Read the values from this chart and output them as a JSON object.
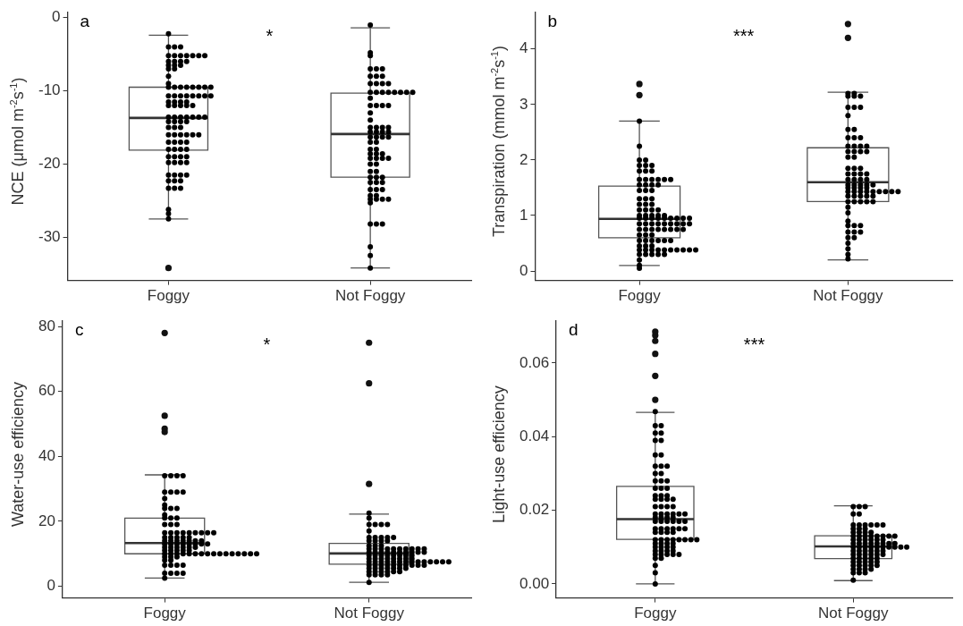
{
  "chart_data": [
    {
      "type": "box",
      "ylabel": "NCE (μmol m$^{-2}$s$^{-1}$)",
      "categories": [
        "Foggy",
        "Not Foggy"
      ],
      "ylim": [
        -35.9,
        0.8
      ],
      "yticks": [
        0,
        -10,
        -20,
        -30
      ],
      "annotations": [
        "a",
        "*"
      ],
      "marker": "circle",
      "boxes": [
        {
          "low": -27.5,
          "q1": -18.1,
          "median": -13.7,
          "q3": -9.5,
          "high": -2.4,
          "outliers": [
            -34.2
          ]
        },
        {
          "low": -34.2,
          "q1": -21.8,
          "median": -15.9,
          "q3": -10.3,
          "high": -1.4
        }
      ],
      "series": [
        {
          "type": "scatter",
          "color": "#000000",
          "x": [
            "Foggy",
            "Foggy",
            "Foggy",
            "Foggy",
            "Foggy",
            "Foggy",
            "Foggy",
            "Foggy",
            "Foggy",
            "Foggy",
            "Foggy",
            "Foggy",
            "Foggy",
            "Foggy",
            "Foggy",
            "Foggy",
            "Foggy",
            "Foggy",
            "Foggy",
            "Foggy",
            "Foggy",
            "Foggy",
            "Foggy",
            "Foggy",
            "Foggy",
            "Foggy",
            "Foggy",
            "Foggy",
            "Foggy",
            "Foggy",
            "Foggy",
            "Foggy",
            "Foggy",
            "Foggy",
            "Foggy",
            "Foggy",
            "Foggy",
            "Foggy",
            "Foggy",
            "Foggy",
            "Foggy",
            "Foggy",
            "Foggy",
            "Foggy",
            "Foggy",
            "Foggy",
            "Foggy",
            "Foggy",
            "Foggy",
            "Foggy",
            "Foggy",
            "Foggy",
            "Foggy",
            "Foggy",
            "Foggy",
            "Foggy",
            "Foggy",
            "Foggy",
            "Foggy",
            "Foggy",
            "Foggy",
            "Foggy",
            "Foggy",
            "Foggy",
            "Foggy",
            "Foggy",
            "Foggy",
            "Foggy",
            "Foggy",
            "Foggy",
            "Foggy",
            "Foggy",
            "Foggy",
            "Foggy",
            "Foggy",
            "Foggy",
            "Foggy",
            "Foggy",
            "Foggy",
            "Foggy",
            "Foggy",
            "Foggy",
            "Foggy",
            "Foggy",
            "Foggy",
            "Foggy",
            "Foggy",
            "Foggy",
            "Foggy",
            "Foggy",
            "Foggy",
            "Foggy",
            "Foggy",
            "Foggy",
            "Foggy",
            "Foggy"
          ],
          "values": [
            -2.2,
            -4,
            -4,
            -4,
            -5.2,
            -5.2,
            -5.2,
            -5.2,
            -5.2,
            -5.2,
            -5.2,
            -6,
            -6,
            -6,
            -6,
            -6.5,
            -6.5,
            -6.5,
            -7,
            -7,
            -8,
            -9,
            -9.5,
            -9.5,
            -9.5,
            -9.5,
            -9.5,
            -9.5,
            -9.5,
            -9.5,
            -10.7,
            -10.7,
            -10.7,
            -10.7,
            -10.7,
            -10.7,
            -10.7,
            -10.7,
            -11.5,
            -11.5,
            -11.5,
            -11.5,
            -12,
            -12,
            -12,
            -12,
            -12,
            -13.6,
            -13.6,
            -13.6,
            -13.6,
            -13.6,
            -13.6,
            -13.6,
            -14.2,
            -14.2,
            -14.2,
            -14.2,
            -15,
            -15,
            -15,
            -16,
            -16,
            -16,
            -16,
            -16,
            -16,
            -17,
            -17,
            -17,
            -17,
            -18,
            -18,
            -18,
            -18,
            -19,
            -19,
            -19,
            -19,
            -19.8,
            -19.8,
            -19.8,
            -19.8,
            -21.5,
            -21.5,
            -21.5,
            -21.5,
            -22.3,
            -22.3,
            -22.3,
            -23.3,
            -23.3,
            -23.3,
            -26.2,
            -26.8,
            -27.5
          ]
        },
        {
          "type": "scatter",
          "color": "#000000",
          "x": [
            "Not Foggy",
            "Not Foggy",
            "Not Foggy",
            "Not Foggy",
            "Not Foggy",
            "Not Foggy",
            "Not Foggy",
            "Not Foggy",
            "Not Foggy",
            "Not Foggy",
            "Not Foggy",
            "Not Foggy",
            "Not Foggy",
            "Not Foggy",
            "Not Foggy",
            "Not Foggy",
            "Not Foggy",
            "Not Foggy",
            "Not Foggy",
            "Not Foggy",
            "Not Foggy",
            "Not Foggy",
            "Not Foggy",
            "Not Foggy",
            "Not Foggy",
            "Not Foggy",
            "Not Foggy",
            "Not Foggy",
            "Not Foggy",
            "Not Foggy",
            "Not Foggy",
            "Not Foggy",
            "Not Foggy",
            "Not Foggy",
            "Not Foggy",
            "Not Foggy",
            "Not Foggy",
            "Not Foggy",
            "Not Foggy",
            "Not Foggy",
            "Not Foggy",
            "Not Foggy",
            "Not Foggy",
            "Not Foggy",
            "Not Foggy",
            "Not Foggy",
            "Not Foggy",
            "Not Foggy",
            "Not Foggy",
            "Not Foggy",
            "Not Foggy",
            "Not Foggy",
            "Not Foggy",
            "Not Foggy",
            "Not Foggy",
            "Not Foggy",
            "Not Foggy",
            "Not Foggy",
            "Not Foggy",
            "Not Foggy",
            "Not Foggy",
            "Not Foggy",
            "Not Foggy",
            "Not Foggy",
            "Not Foggy",
            "Not Foggy",
            "Not Foggy",
            "Not Foggy",
            "Not Foggy",
            "Not Foggy",
            "Not Foggy",
            "Not Foggy",
            "Not Foggy",
            "Not Foggy",
            "Not Foggy",
            "Not Foggy",
            "Not Foggy"
          ],
          "values": [
            -1,
            -4.8,
            -5.2,
            -7,
            -7,
            -7,
            -8,
            -8,
            -8,
            -9,
            -9,
            -9,
            -9,
            -10.2,
            -10.2,
            -10.2,
            -10.2,
            -10.2,
            -10.2,
            -10.2,
            -10.2,
            -11,
            -12,
            -12,
            -12,
            -12,
            -13,
            -14,
            -15,
            -15,
            -15,
            -15,
            -15.6,
            -15.6,
            -15.6,
            -15.6,
            -16.3,
            -16.3,
            -16.3,
            -16.3,
            -17,
            -17,
            -18,
            -18,
            -18.6,
            -18.6,
            -18.6,
            -19.2,
            -19.2,
            -19.2,
            -19.2,
            -20,
            -20,
            -21,
            -21,
            -21.8,
            -21.8,
            -21.8,
            -22.5,
            -22.5,
            -22.5,
            -23.5,
            -23.5,
            -23.5,
            -24.3,
            -24.3,
            -24.8,
            -24.8,
            -24.8,
            -24.8,
            -25.3,
            -28.2,
            -28.2,
            -28.2,
            -31.3,
            -32.5,
            -34.2
          ]
        }
      ]
    },
    {
      "type": "box",
      "ylabel": "Transpiration (mmol m$^{-2}$s$^{-1}$)",
      "categories": [
        "Foggy",
        "Not Foggy"
      ],
      "ylim": [
        -0.17,
        4.67
      ],
      "yticks": [
        0,
        1,
        2,
        3,
        4
      ],
      "annotations": [
        "b",
        "***"
      ],
      "marker": "circle",
      "boxes": [
        {
          "low": 0.1,
          "q1": 0.6,
          "median": 0.94,
          "q3": 1.53,
          "high": 2.7,
          "outliers": [
            3.17,
            3.37
          ]
        },
        {
          "low": 0.2,
          "q1": 1.25,
          "median": 1.6,
          "q3": 2.22,
          "high": 3.22,
          "outliers": [
            4.2,
            4.45
          ]
        }
      ],
      "series": [
        {
          "type": "scatter",
          "color": "#000000",
          "x": [
            "Foggy",
            "Foggy",
            "Foggy",
            "Foggy",
            "Foggy",
            "Foggy",
            "Foggy",
            "Foggy",
            "Foggy",
            "Foggy",
            "Foggy",
            "Foggy",
            "Foggy",
            "Foggy",
            "Foggy",
            "Foggy",
            "Foggy",
            "Foggy",
            "Foggy",
            "Foggy",
            "Foggy",
            "Foggy",
            "Foggy",
            "Foggy",
            "Foggy",
            "Foggy",
            "Foggy",
            "Foggy",
            "Foggy",
            "Foggy",
            "Foggy",
            "Foggy",
            "Foggy",
            "Foggy",
            "Foggy",
            "Foggy",
            "Foggy",
            "Foggy",
            "Foggy",
            "Foggy",
            "Foggy",
            "Foggy",
            "Foggy",
            "Foggy",
            "Foggy",
            "Foggy",
            "Foggy",
            "Foggy",
            "Foggy",
            "Foggy",
            "Foggy",
            "Foggy",
            "Foggy",
            "Foggy",
            "Foggy",
            "Foggy",
            "Foggy",
            "Foggy",
            "Foggy",
            "Foggy",
            "Foggy",
            "Foggy",
            "Foggy",
            "Foggy",
            "Foggy",
            "Foggy",
            "Foggy",
            "Foggy",
            "Foggy",
            "Foggy",
            "Foggy",
            "Foggy",
            "Foggy",
            "Foggy",
            "Foggy",
            "Foggy",
            "Foggy",
            "Foggy",
            "Foggy",
            "Foggy",
            "Foggy",
            "Foggy",
            "Foggy",
            "Foggy",
            "Foggy",
            "Foggy",
            "Foggy",
            "Foggy",
            "Foggy",
            "Foggy",
            "Foggy",
            "Foggy",
            "Foggy",
            "Foggy"
          ],
          "values": [
            2.7,
            2.25,
            2,
            2,
            1.9,
            1.9,
            1.9,
            1.8,
            1.8,
            1.8,
            1.65,
            1.65,
            1.65,
            1.65,
            1.65,
            1.65,
            1.55,
            1.55,
            1.55,
            1.55,
            1.45,
            1.45,
            1.45,
            1.3,
            1.3,
            1.3,
            1.2,
            1.2,
            1.2,
            1.1,
            1.1,
            1.1,
            1.1,
            1,
            1,
            1,
            1,
            1,
            0.95,
            0.95,
            0.95,
            0.95,
            0.95,
            0.95,
            0.95,
            0.95,
            0.95,
            0.85,
            0.85,
            0.85,
            0.85,
            0.85,
            0.85,
            0.85,
            0.85,
            0.85,
            0.75,
            0.75,
            0.75,
            0.75,
            0.75,
            0.75,
            0.75,
            0.75,
            0.65,
            0.65,
            0.65,
            0.55,
            0.55,
            0.55,
            0.55,
            0.55,
            0.55,
            0.45,
            0.45,
            0.45,
            0.38,
            0.38,
            0.38,
            0.38,
            0.38,
            0.38,
            0.38,
            0.38,
            0.38,
            0.38,
            0.3,
            0.3,
            0.3,
            0.3,
            0.3,
            0.2,
            0.1,
            0.05
          ]
        },
        {
          "type": "scatter",
          "color": "#000000",
          "x": [
            "Not Foggy",
            "Not Foggy",
            "Not Foggy",
            "Not Foggy",
            "Not Foggy",
            "Not Foggy",
            "Not Foggy",
            "Not Foggy",
            "Not Foggy",
            "Not Foggy",
            "Not Foggy",
            "Not Foggy",
            "Not Foggy",
            "Not Foggy",
            "Not Foggy",
            "Not Foggy",
            "Not Foggy",
            "Not Foggy",
            "Not Foggy",
            "Not Foggy",
            "Not Foggy",
            "Not Foggy",
            "Not Foggy",
            "Not Foggy",
            "Not Foggy",
            "Not Foggy",
            "Not Foggy",
            "Not Foggy",
            "Not Foggy",
            "Not Foggy",
            "Not Foggy",
            "Not Foggy",
            "Not Foggy",
            "Not Foggy",
            "Not Foggy",
            "Not Foggy",
            "Not Foggy",
            "Not Foggy",
            "Not Foggy",
            "Not Foggy",
            "Not Foggy",
            "Not Foggy",
            "Not Foggy",
            "Not Foggy",
            "Not Foggy",
            "Not Foggy",
            "Not Foggy",
            "Not Foggy",
            "Not Foggy",
            "Not Foggy",
            "Not Foggy",
            "Not Foggy",
            "Not Foggy",
            "Not Foggy",
            "Not Foggy",
            "Not Foggy",
            "Not Foggy",
            "Not Foggy",
            "Not Foggy",
            "Not Foggy",
            "Not Foggy",
            "Not Foggy",
            "Not Foggy",
            "Not Foggy",
            "Not Foggy",
            "Not Foggy",
            "Not Foggy",
            "Not Foggy",
            "Not Foggy",
            "Not Foggy",
            "Not Foggy",
            "Not Foggy",
            "Not Foggy",
            "Not Foggy",
            "Not Foggy",
            "Not Foggy",
            "Not Foggy",
            "Not Foggy"
          ],
          "values": [
            3.2,
            3.2,
            3.15,
            3.15,
            3.15,
            2.95,
            2.95,
            2.95,
            2.8,
            2.55,
            2.55,
            2.4,
            2.4,
            2.4,
            2.25,
            2.25,
            2.25,
            2.25,
            2.15,
            2.15,
            2.15,
            2.15,
            2.05,
            2.05,
            1.85,
            1.85,
            1.85,
            1.75,
            1.75,
            1.75,
            1.75,
            1.65,
            1.65,
            1.65,
            1.65,
            1.55,
            1.55,
            1.55,
            1.55,
            1.55,
            1.5,
            1.5,
            1.5,
            1.5,
            1.43,
            1.43,
            1.43,
            1.43,
            1.43,
            1.43,
            1.43,
            1.43,
            1.43,
            1.35,
            1.35,
            1.35,
            1.35,
            1.35,
            1.25,
            1.25,
            1.25,
            1.25,
            1.25,
            1.15,
            1.05,
            0.9,
            0.82,
            0.82,
            0.82,
            0.7,
            0.7,
            0.7,
            0.6,
            0.6,
            0.5,
            0.4,
            0.3,
            0.22
          ]
        }
      ]
    },
    {
      "type": "box",
      "ylabel": "Water-use efficiency",
      "categories": [
        "Foggy",
        "Not Foggy"
      ],
      "ylim": [
        -3.6,
        81.9
      ],
      "yticks": [
        0,
        20,
        40,
        60,
        80
      ],
      "annotations": [
        "c",
        "*"
      ],
      "marker": "circle",
      "boxes": [
        {
          "low": 2.5,
          "q1": 10,
          "median": 13.3,
          "q3": 21,
          "high": 34.3,
          "outliers": [
            47.5,
            48.5,
            52.5,
            78
          ]
        },
        {
          "low": 1.2,
          "q1": 6.8,
          "median": 10.1,
          "q3": 13.2,
          "high": 22.2,
          "outliers": [
            31.5,
            62.5,
            75
          ]
        }
      ],
      "series": [
        {
          "type": "scatter",
          "color": "#000000",
          "x": [
            "Foggy",
            "Foggy",
            "Foggy",
            "Foggy",
            "Foggy",
            "Foggy",
            "Foggy",
            "Foggy",
            "Foggy",
            "Foggy",
            "Foggy",
            "Foggy",
            "Foggy",
            "Foggy",
            "Foggy",
            "Foggy",
            "Foggy",
            "Foggy",
            "Foggy",
            "Foggy",
            "Foggy",
            "Foggy",
            "Foggy",
            "Foggy",
            "Foggy",
            "Foggy",
            "Foggy",
            "Foggy",
            "Foggy",
            "Foggy",
            "Foggy",
            "Foggy",
            "Foggy",
            "Foggy",
            "Foggy",
            "Foggy",
            "Foggy",
            "Foggy",
            "Foggy",
            "Foggy",
            "Foggy",
            "Foggy",
            "Foggy",
            "Foggy",
            "Foggy",
            "Foggy",
            "Foggy",
            "Foggy",
            "Foggy",
            "Foggy",
            "Foggy",
            "Foggy",
            "Foggy",
            "Foggy",
            "Foggy",
            "Foggy",
            "Foggy",
            "Foggy",
            "Foggy",
            "Foggy",
            "Foggy",
            "Foggy",
            "Foggy",
            "Foggy",
            "Foggy",
            "Foggy",
            "Foggy",
            "Foggy",
            "Foggy",
            "Foggy",
            "Foggy",
            "Foggy",
            "Foggy",
            "Foggy",
            "Foggy",
            "Foggy",
            "Foggy",
            "Foggy",
            "Foggy",
            "Foggy",
            "Foggy",
            "Foggy",
            "Foggy",
            "Foggy",
            "Foggy",
            "Foggy",
            "Foggy",
            "Foggy",
            "Foggy",
            "Foggy"
          ],
          "values": [
            34,
            34,
            34,
            34,
            29,
            29,
            29,
            29,
            27,
            25,
            24,
            24,
            24,
            22,
            21,
            21,
            21,
            19,
            19,
            19,
            16.5,
            16.5,
            16.5,
            16.5,
            16.5,
            16.5,
            16.5,
            16.5,
            16.5,
            15,
            15,
            15,
            15,
            15,
            14,
            14,
            14,
            14,
            14,
            14,
            14,
            13,
            13,
            13,
            13,
            13,
            13,
            13,
            13,
            12,
            12,
            12,
            12,
            12,
            12,
            11,
            11,
            11,
            11,
            11,
            10,
            10,
            10,
            10,
            10,
            10,
            10,
            10,
            10,
            10,
            10,
            10,
            10,
            10,
            10,
            10,
            9,
            9,
            9,
            8,
            8,
            6.5,
            6.5,
            6.5,
            6.5,
            4,
            4,
            4,
            4,
            2.5
          ]
        },
        {
          "type": "scatter",
          "color": "#000000",
          "x": [
            "Not Foggy",
            "Not Foggy",
            "Not Foggy",
            "Not Foggy",
            "Not Foggy",
            "Not Foggy",
            "Not Foggy",
            "Not Foggy",
            "Not Foggy",
            "Not Foggy",
            "Not Foggy",
            "Not Foggy",
            "Not Foggy",
            "Not Foggy",
            "Not Foggy",
            "Not Foggy",
            "Not Foggy",
            "Not Foggy",
            "Not Foggy",
            "Not Foggy",
            "Not Foggy",
            "Not Foggy",
            "Not Foggy",
            "Not Foggy",
            "Not Foggy",
            "Not Foggy",
            "Not Foggy",
            "Not Foggy",
            "Not Foggy",
            "Not Foggy",
            "Not Foggy",
            "Not Foggy",
            "Not Foggy",
            "Not Foggy",
            "Not Foggy",
            "Not Foggy",
            "Not Foggy",
            "Not Foggy",
            "Not Foggy",
            "Not Foggy",
            "Not Foggy",
            "Not Foggy",
            "Not Foggy",
            "Not Foggy",
            "Not Foggy",
            "Not Foggy",
            "Not Foggy",
            "Not Foggy",
            "Not Foggy",
            "Not Foggy",
            "Not Foggy",
            "Not Foggy",
            "Not Foggy",
            "Not Foggy",
            "Not Foggy",
            "Not Foggy",
            "Not Foggy",
            "Not Foggy",
            "Not Foggy",
            "Not Foggy",
            "Not Foggy",
            "Not Foggy",
            "Not Foggy",
            "Not Foggy",
            "Not Foggy",
            "Not Foggy",
            "Not Foggy",
            "Not Foggy",
            "Not Foggy",
            "Not Foggy",
            "Not Foggy",
            "Not Foggy",
            "Not Foggy",
            "Not Foggy",
            "Not Foggy",
            "Not Foggy",
            "Not Foggy",
            "Not Foggy",
            "Not Foggy",
            "Not Foggy",
            "Not Foggy",
            "Not Foggy",
            "Not Foggy",
            "Not Foggy",
            "Not Foggy",
            "Not Foggy",
            "Not Foggy",
            "Not Foggy",
            "Not Foggy",
            "Not Foggy",
            "Not Foggy",
            "Not Foggy",
            "Not Foggy",
            "Not Foggy",
            "Not Foggy",
            "Not Foggy",
            "Not Foggy"
          ],
          "values": [
            22.5,
            21,
            19,
            19,
            19,
            19,
            17,
            15,
            15,
            15,
            15,
            15,
            14,
            14,
            14,
            14,
            12.5,
            12.5,
            12.5,
            11.5,
            11.5,
            11.5,
            11.5,
            11.5,
            11.5,
            11.5,
            11.5,
            11.5,
            11.5,
            10.5,
            10.5,
            10.5,
            10.5,
            10.5,
            10.5,
            10.5,
            10.5,
            10.5,
            10.5,
            9.5,
            9.5,
            9.5,
            9.5,
            9.5,
            9.5,
            9.5,
            9.5,
            8.5,
            8.5,
            8.5,
            8.5,
            8.5,
            8.5,
            8.5,
            8.5,
            7.5,
            7.5,
            7.5,
            7.5,
            7.5,
            7.5,
            7.5,
            7.5,
            7.5,
            7.5,
            7.5,
            7.5,
            7.5,
            7.5,
            6.5,
            6.5,
            6.5,
            6.5,
            6.5,
            6.5,
            6.5,
            6.5,
            6.5,
            6.5,
            5.5,
            5.5,
            5.5,
            5.5,
            5.5,
            5.5,
            5.5,
            4.5,
            4.5,
            4.5,
            4.5,
            4.5,
            4.5,
            3.5,
            3.5,
            3.5,
            3.5,
            1.2
          ]
        }
      ]
    },
    {
      "type": "box",
      "ylabel": "Light-use efficiency",
      "categories": [
        "Foggy",
        "Not Foggy"
      ],
      "ylim": [
        -0.0038,
        0.0716
      ],
      "yticks": [
        {
          "value": 0,
          "label": "0.00"
        },
        {
          "value": 0.02,
          "label": "0.02"
        },
        {
          "value": 0.04,
          "label": "0.04"
        },
        {
          "value": 0.06,
          "label": "0.06"
        }
      ],
      "annotations": [
        "d",
        "***"
      ],
      "marker": "circle",
      "boxes": [
        {
          "low": 0,
          "q1": 0.0121,
          "median": 0.0176,
          "q3": 0.0265,
          "high": 0.0466,
          "outliers": [
            0.05,
            0.0565,
            0.0625,
            0.066,
            0.0675,
            0.0685
          ]
        },
        {
          "low": 0.0009,
          "q1": 0.0069,
          "median": 0.0102,
          "q3": 0.0131,
          "high": 0.0212
        }
      ],
      "series": [
        {
          "type": "scatter",
          "color": "#000000",
          "x": [
            "Foggy",
            "Foggy",
            "Foggy",
            "Foggy",
            "Foggy",
            "Foggy",
            "Foggy",
            "Foggy",
            "Foggy",
            "Foggy",
            "Foggy",
            "Foggy",
            "Foggy",
            "Foggy",
            "Foggy",
            "Foggy",
            "Foggy",
            "Foggy",
            "Foggy",
            "Foggy",
            "Foggy",
            "Foggy",
            "Foggy",
            "Foggy",
            "Foggy",
            "Foggy",
            "Foggy",
            "Foggy",
            "Foggy",
            "Foggy",
            "Foggy",
            "Foggy",
            "Foggy",
            "Foggy",
            "Foggy",
            "Foggy",
            "Foggy",
            "Foggy",
            "Foggy",
            "Foggy",
            "Foggy",
            "Foggy",
            "Foggy",
            "Foggy",
            "Foggy",
            "Foggy",
            "Foggy",
            "Foggy",
            "Foggy",
            "Foggy",
            "Foggy",
            "Foggy",
            "Foggy",
            "Foggy",
            "Foggy",
            "Foggy",
            "Foggy",
            "Foggy",
            "Foggy",
            "Foggy",
            "Foggy",
            "Foggy",
            "Foggy",
            "Foggy",
            "Foggy",
            "Foggy",
            "Foggy",
            "Foggy",
            "Foggy",
            "Foggy",
            "Foggy",
            "Foggy",
            "Foggy",
            "Foggy",
            "Foggy",
            "Foggy",
            "Foggy",
            "Foggy",
            "Foggy",
            "Foggy",
            "Foggy",
            "Foggy",
            "Foggy",
            "Foggy",
            "Foggy",
            "Foggy",
            "Foggy"
          ],
          "values": [
            0.0468,
            0.043,
            0.043,
            0.041,
            0.041,
            0.039,
            0.039,
            0.035,
            0.035,
            0.032,
            0.032,
            0.032,
            0.03,
            0.03,
            0.028,
            0.028,
            0.028,
            0.026,
            0.026,
            0.026,
            0.024,
            0.024,
            0.024,
            0.023,
            0.023,
            0.023,
            0.023,
            0.021,
            0.021,
            0.021,
            0.021,
            0.019,
            0.019,
            0.019,
            0.019,
            0.019,
            0.019,
            0.018,
            0.018,
            0.018,
            0.018,
            0.017,
            0.017,
            0.017,
            0.017,
            0.017,
            0.017,
            0.015,
            0.015,
            0.015,
            0.015,
            0.015,
            0.015,
            0.014,
            0.014,
            0.014,
            0.014,
            0.012,
            0.012,
            0.012,
            0.012,
            0.012,
            0.012,
            0.012,
            0.012,
            0.011,
            0.011,
            0.011,
            0.011,
            0.01,
            0.01,
            0.01,
            0.01,
            0.009,
            0.009,
            0.009,
            0.009,
            0.008,
            0.008,
            0.008,
            0.008,
            0.008,
            0.007,
            0.007,
            0.005,
            0.003,
            0
          ]
        },
        {
          "type": "scatter",
          "color": "#000000",
          "x": [
            "Not Foggy",
            "Not Foggy",
            "Not Foggy",
            "Not Foggy",
            "Not Foggy",
            "Not Foggy",
            "Not Foggy",
            "Not Foggy",
            "Not Foggy",
            "Not Foggy",
            "Not Foggy",
            "Not Foggy",
            "Not Foggy",
            "Not Foggy",
            "Not Foggy",
            "Not Foggy",
            "Not Foggy",
            "Not Foggy",
            "Not Foggy",
            "Not Foggy",
            "Not Foggy",
            "Not Foggy",
            "Not Foggy",
            "Not Foggy",
            "Not Foggy",
            "Not Foggy",
            "Not Foggy",
            "Not Foggy",
            "Not Foggy",
            "Not Foggy",
            "Not Foggy",
            "Not Foggy",
            "Not Foggy",
            "Not Foggy",
            "Not Foggy",
            "Not Foggy",
            "Not Foggy",
            "Not Foggy",
            "Not Foggy",
            "Not Foggy",
            "Not Foggy",
            "Not Foggy",
            "Not Foggy",
            "Not Foggy",
            "Not Foggy",
            "Not Foggy",
            "Not Foggy",
            "Not Foggy",
            "Not Foggy",
            "Not Foggy",
            "Not Foggy",
            "Not Foggy",
            "Not Foggy",
            "Not Foggy",
            "Not Foggy",
            "Not Foggy",
            "Not Foggy",
            "Not Foggy",
            "Not Foggy",
            "Not Foggy",
            "Not Foggy",
            "Not Foggy",
            "Not Foggy",
            "Not Foggy",
            "Not Foggy",
            "Not Foggy",
            "Not Foggy",
            "Not Foggy",
            "Not Foggy",
            "Not Foggy",
            "Not Foggy",
            "Not Foggy",
            "Not Foggy",
            "Not Foggy",
            "Not Foggy",
            "Not Foggy",
            "Not Foggy",
            "Not Foggy",
            "Not Foggy",
            "Not Foggy",
            "Not Foggy",
            "Not Foggy",
            "Not Foggy",
            "Not Foggy",
            "Not Foggy"
          ],
          "values": [
            0.021,
            0.021,
            0.021,
            0.019,
            0.019,
            0.016,
            0.016,
            0.016,
            0.016,
            0.016,
            0.016,
            0.015,
            0.015,
            0.015,
            0.014,
            0.014,
            0.014,
            0.014,
            0.013,
            0.013,
            0.013,
            0.013,
            0.013,
            0.013,
            0.013,
            0.013,
            0.012,
            0.012,
            0.012,
            0.012,
            0.012,
            0.012,
            0.011,
            0.011,
            0.011,
            0.011,
            0.011,
            0.011,
            0.011,
            0.011,
            0.01,
            0.01,
            0.01,
            0.01,
            0.01,
            0.01,
            0.01,
            0.01,
            0.01,
            0.01,
            0.009,
            0.009,
            0.009,
            0.009,
            0.009,
            0.009,
            0.008,
            0.008,
            0.008,
            0.008,
            0.008,
            0.008,
            0.007,
            0.007,
            0.007,
            0.007,
            0.007,
            0.006,
            0.006,
            0.006,
            0.006,
            0.006,
            0.005,
            0.005,
            0.005,
            0.005,
            0.005,
            0.004,
            0.004,
            0.004,
            0.004,
            0.003,
            0.003,
            0.003,
            0.001
          ]
        }
      ]
    }
  ]
}
